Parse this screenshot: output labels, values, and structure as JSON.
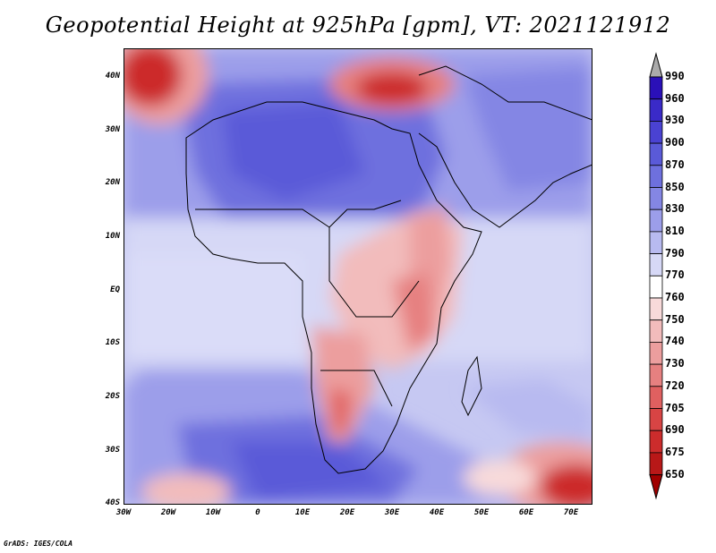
{
  "title": "Geopotential Height at 925hPa [gpm], VT: 2021121912",
  "credit": "GrADS: IGES/COLA",
  "y_ticks": [
    "40N",
    "30N",
    "20N",
    "10N",
    "EQ",
    "10S",
    "20S",
    "30S",
    "40S"
  ],
  "x_ticks": [
    "30W",
    "20W",
    "10W",
    "0",
    "10E",
    "20E",
    "30E",
    "40E",
    "50E",
    "60E",
    "70E"
  ],
  "colorbar": {
    "levels": [
      "990",
      "960",
      "930",
      "900",
      "870",
      "850",
      "830",
      "810",
      "790",
      "770",
      "760",
      "750",
      "740",
      "730",
      "720",
      "705",
      "690",
      "675",
      "650"
    ],
    "colors": [
      "#1a00a0",
      "#2a10b8",
      "#3a2ac8",
      "#4a42d2",
      "#5a5ad8",
      "#6e70de",
      "#8486e4",
      "#9c9eea",
      "#b8baf0",
      "#d6d8f6",
      "#ffffff",
      "#f8dada",
      "#f2bcbc",
      "#ec9e9e",
      "#e68080",
      "#e06060",
      "#d84444",
      "#cc2c2c",
      "#b81818",
      "#a00000"
    ]
  }
}
